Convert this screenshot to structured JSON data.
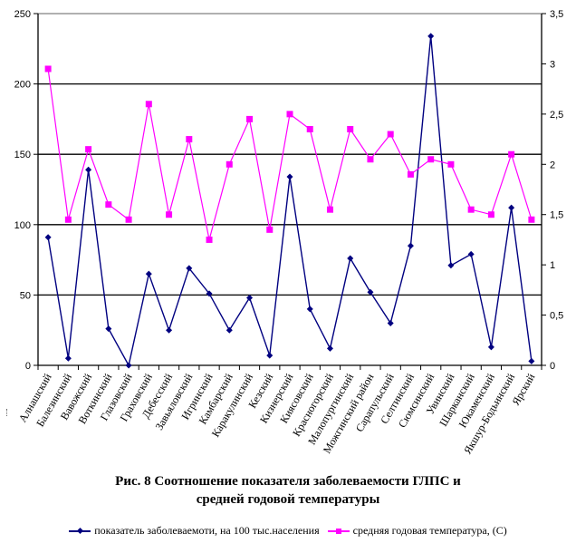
{
  "chart_data": {
    "type": "line",
    "title": "Рис. 8   Соотношение показателя заболеваемости ГЛПС и средней годовой температуры",
    "title_lines": [
      "Рис. 8   Соотношение показателя заболеваемости ГЛПС и",
      "средней годовой температуры"
    ],
    "xlabel": "",
    "ylabel": "",
    "y2label": "",
    "categories": [
      "Алнашский",
      "Балезинский",
      "Вавожский",
      "Воткинский",
      "Глазовский",
      "Граховский",
      "Дебесский",
      "Завьяловский",
      "Игринский",
      "Камбарский",
      "Каракулинский",
      "Кезский",
      "Кизнерский",
      "Киясовский",
      "Красногорский",
      "Малопургинский",
      "Можгинский район",
      "Сарапульский",
      "Селтинский",
      "Сюмсинский",
      "Увинский",
      "Шарканский",
      "Юкаменский",
      "Якшур-Бодьинский",
      "Ярский"
    ],
    "ylim": [
      0,
      250
    ],
    "yticks": [
      "0",
      "50",
      "100",
      "150",
      "200",
      "250"
    ],
    "y2lim": [
      0,
      3.5
    ],
    "y2ticks": [
      "0",
      "0,5",
      "1",
      "1,5",
      "2",
      "2,5",
      "3",
      "3,5"
    ],
    "grid": true,
    "legend_position": "bottom",
    "series": [
      {
        "name": "показатель заболеваемоти, на 100 тыс.населения",
        "axis": "left",
        "color": "#000080",
        "marker": "diamond",
        "values": [
          91,
          5,
          139,
          26,
          0,
          65,
          25,
          69,
          51,
          25,
          48,
          7,
          134,
          40,
          12,
          76,
          52,
          30,
          85,
          234,
          71,
          79,
          13,
          112,
          3
        ]
      },
      {
        "name": "средняя годовая температура, (С)",
        "axis": "right",
        "color": "#FF00FF",
        "marker": "square",
        "values": [
          2.95,
          1.45,
          2.15,
          1.6,
          1.45,
          2.6,
          1.5,
          2.25,
          1.25,
          2.0,
          2.45,
          1.35,
          2.5,
          2.35,
          1.55,
          2.35,
          2.05,
          2.3,
          1.9,
          2.05,
          2.0,
          1.55,
          1.5,
          2.1,
          1.45
        ]
      }
    ]
  }
}
